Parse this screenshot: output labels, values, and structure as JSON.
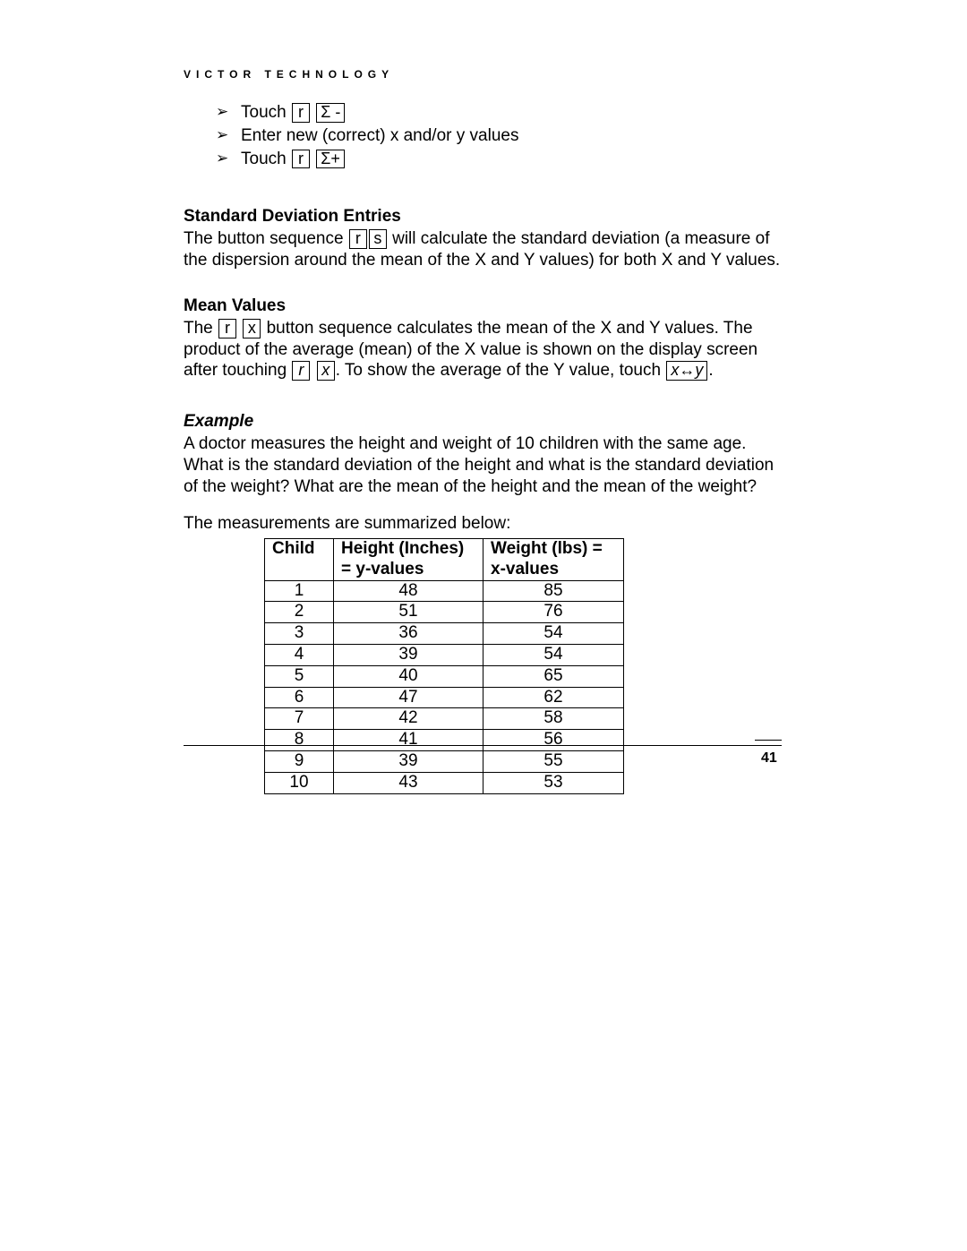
{
  "brand": "VICTOR TECHNOLOGY",
  "bullets": {
    "b1_prefix": "Touch ",
    "b1_key1": "r",
    "b1_key2": "Σ -",
    "b2": "Enter new (correct) x and/or y values",
    "b3_prefix": "Touch ",
    "b3_key1": "r",
    "b3_key2": "Σ+"
  },
  "sd": {
    "heading": "Standard Deviation Entries",
    "pre": "The button sequence ",
    "key1": "r",
    "key2": "s",
    "post": " will calculate the standard deviation (a measure of the dispersion around the mean of the X and Y values) for both X and Y values."
  },
  "mean": {
    "heading": "Mean Values",
    "pre": "The ",
    "key1": "r",
    "key2": "x",
    "mid1": " button sequence calculates the mean of the X and Y values.  The product of the average (mean) of the X value is shown on the display screen after touching  ",
    "key3": "r",
    "key4": "x",
    "mid2": ".  To show the average of the Y value, touch ",
    "key5": "x↔y",
    "end": "."
  },
  "example": {
    "heading": "Example",
    "para": "A doctor measures the height and weight of 10 children with the same age.  What is the standard deviation of the height and what is the standard deviation of the weight?  What are the mean of the height and the mean of the weight?",
    "lead": "The measurements are summarized below:"
  },
  "table": {
    "h_child": "Child",
    "h_height1": "Height (Inches)",
    "h_height2": "= y-values",
    "h_weight1": "Weight (lbs) =",
    "h_weight2": "x-values",
    "rows": [
      {
        "c": "1",
        "h": "48",
        "w": "85"
      },
      {
        "c": "2",
        "h": "51",
        "w": "76"
      },
      {
        "c": "3",
        "h": "36",
        "w": "54"
      },
      {
        "c": "4",
        "h": "39",
        "w": "54"
      },
      {
        "c": "5",
        "h": "40",
        "w": "65"
      },
      {
        "c": "6",
        "h": "47",
        "w": "62"
      },
      {
        "c": "7",
        "h": "42",
        "w": "58"
      },
      {
        "c": "8",
        "h": "41",
        "w": "56"
      },
      {
        "c": "9",
        "h": "39",
        "w": "55"
      },
      {
        "c": "10",
        "h": "43",
        "w": "53"
      }
    ]
  },
  "page_number": "41"
}
